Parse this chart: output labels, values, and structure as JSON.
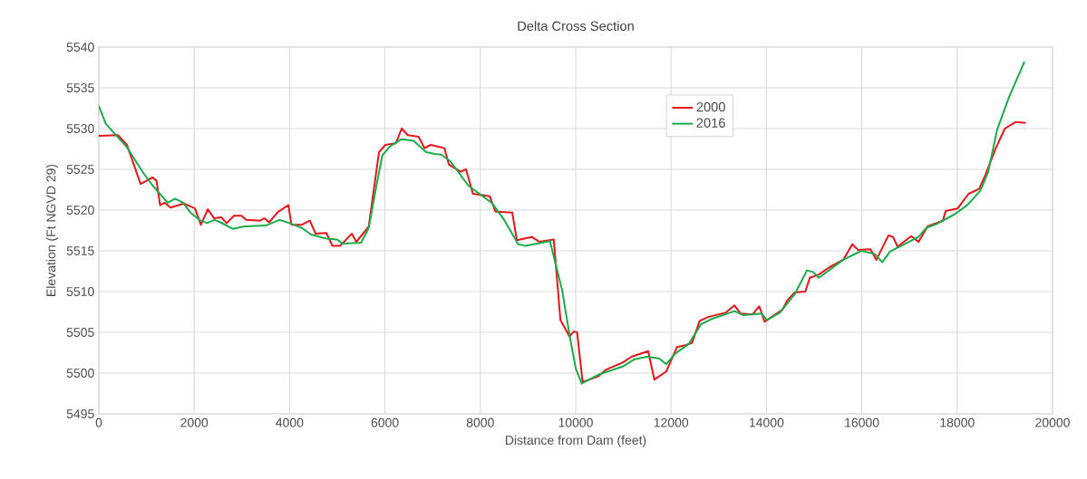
{
  "chart_data": {
    "type": "line",
    "title": "Delta Cross Section",
    "xlabel": "Distance from Dam (feet)",
    "ylabel": "Elevation (Ft NGVD 29)",
    "xlim": [
      0,
      20000
    ],
    "ylim": [
      5495,
      5540
    ],
    "xticks": [
      0,
      2000,
      4000,
      6000,
      8000,
      10000,
      12000,
      14000,
      16000,
      18000,
      20000
    ],
    "yticks": [
      5495,
      5500,
      5505,
      5510,
      5515,
      5520,
      5525,
      5530,
      5535,
      5540
    ],
    "grid": true,
    "legend": "top",
    "line_style": "solid",
    "marker": "none",
    "series": [
      {
        "name": "2000",
        "color": "#e8141a",
        "x": [
          0,
          400,
          590,
          875,
          1000,
          1125,
          1210,
          1285,
          1380,
          1505,
          1790,
          2015,
          2140,
          2285,
          2415,
          2570,
          2680,
          2835,
          2990,
          3090,
          3380,
          3470,
          3570,
          3760,
          3975,
          4040,
          4260,
          4425,
          4545,
          4770,
          4900,
          5055,
          5305,
          5400,
          5525,
          5660,
          5875,
          6010,
          6230,
          6350,
          6480,
          6705,
          6830,
          6960,
          7245,
          7340,
          7585,
          7700,
          7845,
          8195,
          8320,
          8670,
          8765,
          9080,
          9240,
          9540,
          9680,
          9870,
          9960,
          10030,
          10145,
          10475,
          10630,
          10985,
          11170,
          11520,
          11650,
          11900,
          12125,
          12280,
          12440,
          12600,
          12790,
          13140,
          13330,
          13460,
          13710,
          13850,
          13960,
          14340,
          14435,
          14595,
          14815,
          14910,
          15100,
          15325,
          15610,
          15800,
          15925,
          16180,
          16305,
          16560,
          16655,
          16750,
          17035,
          17190,
          17380,
          17700,
          17760,
          18010,
          18240,
          18460,
          18590,
          18810,
          19000,
          19220,
          19440
        ],
        "values": [
          5529.1,
          5529.2,
          5528,
          5523.2,
          5523.6,
          5524,
          5523.6,
          5520.6,
          5520.9,
          5520.3,
          5520.8,
          5520.2,
          5518.2,
          5520.1,
          5519,
          5519.1,
          5518.4,
          5519.3,
          5519.3,
          5518.8,
          5518.7,
          5519,
          5518.5,
          5519.8,
          5520.6,
          5518.2,
          5518.2,
          5518.7,
          5517.1,
          5517.2,
          5515.6,
          5515.6,
          5517.1,
          5516.1,
          5517,
          5518,
          5527.1,
          5528,
          5528.2,
          5530,
          5529.2,
          5529,
          5527.6,
          5528,
          5527.6,
          5525.6,
          5524.7,
          5525,
          5522,
          5521.7,
          5519.8,
          5519.7,
          5516.3,
          5516.7,
          5516.1,
          5516.4,
          5506.5,
          5504.5,
          5505.1,
          5505,
          5498.9,
          5499.6,
          5500.4,
          5501.3,
          5502,
          5502.7,
          5499.2,
          5500.2,
          5503.2,
          5503.4,
          5503.7,
          5506.4,
          5506.9,
          5507.4,
          5508.3,
          5507.3,
          5507.2,
          5508.2,
          5506.3,
          5507.8,
          5508.9,
          5509.9,
          5510,
          5511.7,
          5512.1,
          5513,
          5513.9,
          5515.8,
          5515.1,
          5515.2,
          5513.9,
          5516.9,
          5516.7,
          5515.5,
          5516.8,
          5516.1,
          5518,
          5518.7,
          5519.9,
          5520.2,
          5522,
          5522.6,
          5524.3,
          5527.6,
          5530,
          5530.8,
          5530.7
        ]
      },
      {
        "name": "2016",
        "color": "#1aab4b",
        "x": [
          0,
          145,
          590,
          940,
          1130,
          1445,
          1600,
          1765,
          1920,
          2110,
          2270,
          2425,
          2550,
          2810,
          3060,
          3500,
          3785,
          4000,
          4260,
          4450,
          4770,
          4990,
          5115,
          5500,
          5660,
          5815,
          5945,
          6100,
          6350,
          6600,
          6865,
          7040,
          7180,
          7370,
          7750,
          8255,
          8510,
          8795,
          8950,
          9460,
          9715,
          9870,
          10000,
          10125,
          10475,
          10985,
          11235,
          11490,
          11745,
          11900,
          12090,
          12375,
          12630,
          12880,
          13330,
          13520,
          13900,
          14010,
          14280,
          14595,
          14850,
          14975,
          15100,
          15610,
          15990,
          16275,
          16430,
          16590,
          17190,
          17350,
          17570,
          17950,
          18210,
          18490,
          18650,
          18840,
          19090,
          19410
        ],
        "values": [
          5532.8,
          5530.6,
          5527.7,
          5524.5,
          5523,
          5520.9,
          5521.4,
          5520.9,
          5519.7,
          5518.8,
          5518.4,
          5518.8,
          5518.5,
          5517.7,
          5518,
          5518.1,
          5518.8,
          5518.4,
          5517.8,
          5517,
          5516.5,
          5516.4,
          5515.9,
          5516,
          5517.8,
          5522.8,
          5526.7,
          5527.8,
          5528.7,
          5528.5,
          5527.1,
          5526.9,
          5526.8,
          5526,
          5523,
          5520.8,
          5518.7,
          5515.8,
          5515.6,
          5516.2,
          5510.2,
          5504.7,
          5500.6,
          5498.7,
          5499.8,
          5500.8,
          5501.7,
          5502,
          5501.8,
          5501.1,
          5502.4,
          5503.6,
          5506,
          5506.7,
          5507.6,
          5507.1,
          5507.3,
          5506.5,
          5507.4,
          5509.7,
          5512.6,
          5512.4,
          5511.7,
          5513.9,
          5515,
          5514.6,
          5513.6,
          5514.9,
          5516.7,
          5517.8,
          5518.3,
          5519.5,
          5520.6,
          5522.4,
          5524.7,
          5529.9,
          5533.9,
          5538.2
        ]
      }
    ]
  }
}
